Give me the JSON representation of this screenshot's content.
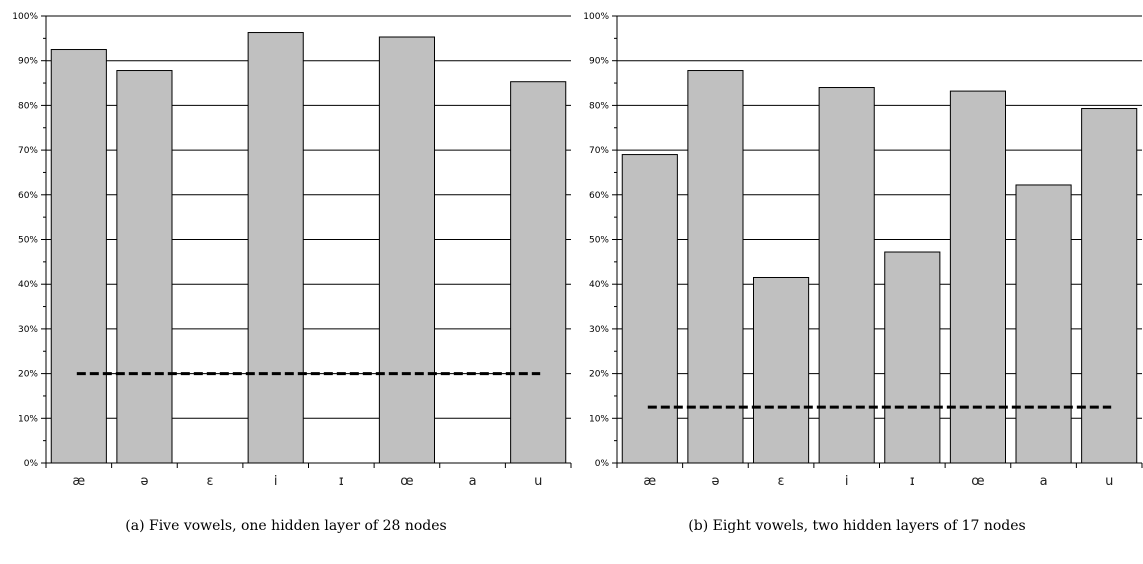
{
  "chart_data": [
    {
      "type": "bar",
      "caption": "(a) Five vowels, one hidden layer of 28 nodes",
      "categories": [
        "æ",
        "ə",
        "ɛ",
        "i",
        "ɪ",
        "œ",
        "a",
        "u"
      ],
      "values": [
        92.5,
        87.8,
        null,
        96.3,
        null,
        95.3,
        null,
        85.3
      ],
      "reference_line": 20,
      "ylim": [
        0,
        100
      ],
      "yticks": [
        "0%",
        "10%",
        "20%",
        "30%",
        "40%",
        "50%",
        "60%",
        "70%",
        "80%",
        "90%",
        "100%"
      ],
      "grid": true,
      "bar_color": "#c0c0c0",
      "reference_line_color": "#000000"
    },
    {
      "type": "bar",
      "caption": "(b) Eight vowels, two hidden layers of 17 nodes",
      "categories": [
        "æ",
        "ə",
        "ɛ",
        "i",
        "ɪ",
        "œ",
        "a",
        "u"
      ],
      "values": [
        69.0,
        87.8,
        41.5,
        84.0,
        47.2,
        83.2,
        62.2,
        79.3
      ],
      "reference_line": 12.5,
      "ylim": [
        0,
        100
      ],
      "yticks": [
        "0%",
        "10%",
        "20%",
        "30%",
        "40%",
        "50%",
        "60%",
        "70%",
        "80%",
        "90%",
        "100%"
      ],
      "grid": true,
      "bar_color": "#c0c0c0",
      "reference_line_color": "#000000"
    }
  ]
}
